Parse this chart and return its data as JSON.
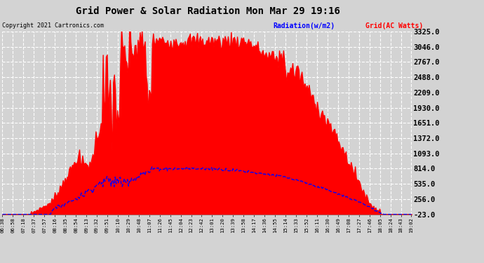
{
  "title": "Grid Power & Solar Radiation Mon Mar 29 19:16",
  "copyright": "Copyright 2021 Cartronics.com",
  "legend_radiation": "Radiation(w/m2)",
  "legend_grid": "Grid(AC Watts)",
  "yticks": [
    3325.0,
    3046.0,
    2767.0,
    2488.0,
    2209.0,
    1930.0,
    1651.0,
    1372.0,
    1093.0,
    814.0,
    535.0,
    256.0,
    -23.0
  ],
  "ymin": -23.0,
  "ymax": 3325.0,
  "bg_color": "#d3d3d3",
  "plot_bg_color": "#d3d3d3",
  "grid_color": "#ffffff",
  "radiation_color": "#0000ff",
  "grid_ac_color": "#ff0000",
  "xtick_labels": [
    "06:38",
    "06:58",
    "07:18",
    "07:37",
    "07:57",
    "08:16",
    "08:35",
    "08:54",
    "09:13",
    "09:32",
    "09:51",
    "10:10",
    "10:29",
    "10:48",
    "11:07",
    "11:26",
    "11:45",
    "12:04",
    "12:23",
    "12:42",
    "13:01",
    "13:20",
    "13:39",
    "13:58",
    "14:17",
    "14:36",
    "14:55",
    "15:14",
    "15:33",
    "15:52",
    "16:11",
    "16:30",
    "16:49",
    "17:08",
    "17:27",
    "17:46",
    "18:05",
    "18:24",
    "18:43",
    "19:02"
  ]
}
